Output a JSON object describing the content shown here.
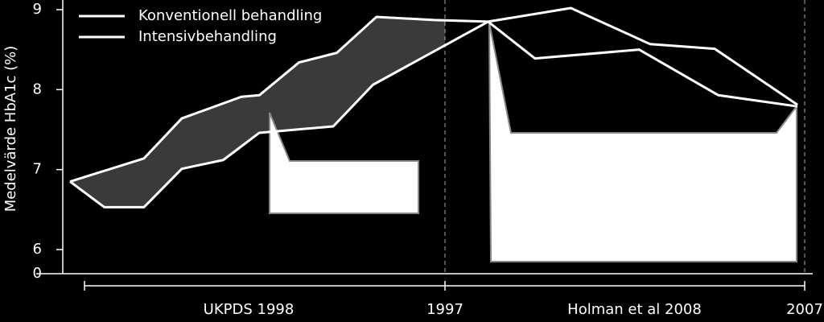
{
  "chart_data": {
    "type": "line",
    "ylabel": "Medelvärde HbA1c (%)",
    "ylim": [
      6,
      9
    ],
    "yticks": [
      6,
      7,
      8,
      9
    ],
    "baseline_tick": 0,
    "periods": [
      {
        "label": "UKPDS 1998",
        "xlim": [
          1977,
          1997
        ]
      },
      {
        "label": "Holman et al 2008",
        "xlim": [
          1997,
          2007
        ]
      }
    ],
    "xticks": [
      1997,
      2007
    ],
    "shade_color": "#3a3a3a",
    "series": [
      {
        "name": "Konventionell behandling",
        "color": "#ffffff",
        "x": [
          1976.2,
          1980.3,
          1982.4,
          1985.7,
          1986.7,
          1988.9,
          1991.0,
          1993.2,
          1996.4,
          1998.2,
          1999.5,
          2002.4,
          2004.6,
          2006.8
        ],
        "values": [
          6.85,
          7.14,
          7.64,
          7.91,
          7.93,
          8.34,
          8.46,
          8.91,
          8.87,
          8.85,
          8.39,
          8.5,
          7.93,
          7.79
        ]
      },
      {
        "name": "Intensivbehandling",
        "color": "#ffffff",
        "x": [
          1976.2,
          1978.1,
          1980.3,
          1982.4,
          1984.7,
          1986.7,
          1990.8,
          1993.0,
          1998.2,
          2000.5,
          2002.7,
          2004.5,
          2006.8
        ],
        "values": [
          6.85,
          6.53,
          6.53,
          7.01,
          7.12,
          7.46,
          7.54,
          8.06,
          8.85,
          9.02,
          8.57,
          8.51,
          7.81
        ]
      }
    ]
  }
}
